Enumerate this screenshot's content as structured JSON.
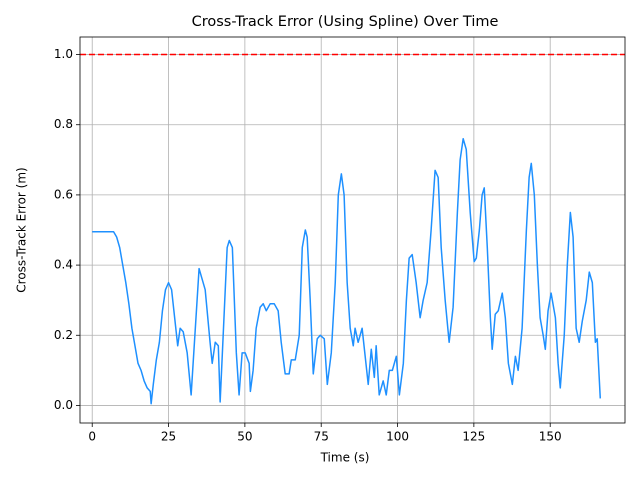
{
  "chart_data": {
    "type": "line",
    "title": "Cross-Track Error (Using Spline) Over Time",
    "xlabel": "Time (s)",
    "ylabel": "Cross-Track Error (m)",
    "xlim": [
      -4,
      174.5
    ],
    "ylim": [
      -0.05,
      1.05
    ],
    "xticks": [
      0,
      25,
      50,
      75,
      100,
      125,
      150
    ],
    "yticks": [
      {
        "value": 0,
        "label": "0.0"
      },
      0.2,
      0.4,
      0.6,
      0.8,
      {
        "value": 1,
        "label": "1.0"
      }
    ],
    "grid": true,
    "threshold": 1.0,
    "threshold_color": "#ff0000",
    "series": [
      {
        "color": "#1e90ff",
        "x": [
          0,
          7,
          8,
          9,
          10,
          11,
          12,
          13,
          14,
          15,
          16,
          17,
          18,
          19,
          19.3,
          20,
          21,
          22,
          23,
          24,
          25,
          26,
          27,
          28,
          28.8,
          29.8,
          31.1,
          32.4,
          35,
          37,
          38.6,
          39.3,
          40.3,
          41.3,
          41.9,
          44.2,
          44.9,
          45.9,
          47.2,
          48.1,
          49.1,
          50.1,
          51.4,
          51.8,
          52.7,
          53.7,
          55,
          56,
          57,
          58.3,
          59.6,
          60.9,
          61.9,
          63.2,
          64.5,
          65.2,
          66.5,
          67.8,
          68.8,
          69.8,
          70.4,
          71.4,
          72.4,
          73.7,
          74.7,
          76,
          77,
          78.3,
          79.6,
          80.6,
          81.6,
          82.5,
          83.5,
          84.5,
          85.5,
          86.1,
          87.1,
          88.4,
          89.4,
          90.4,
          91.4,
          92.4,
          93,
          94,
          95.3,
          96.3,
          97.3,
          98.3,
          99.6,
          100.6,
          101.9,
          102.9,
          103.8,
          104.8,
          106.1,
          107.4,
          108.4,
          109.7,
          111,
          112.3,
          113.3,
          114.3,
          115.6,
          116.9,
          118.2,
          119.6,
          120.5,
          121.5,
          122.5,
          123.8,
          125.1,
          125.8,
          126.8,
          127.7,
          128.4,
          129.4,
          130.4,
          131,
          132,
          133,
          134.3,
          135.3,
          136.3,
          137.6,
          138.6,
          139.5,
          140.8,
          142.2,
          143.1,
          143.8,
          144.8,
          145.8,
          146.7,
          147.7,
          148.4,
          149.3,
          150.3,
          151.7,
          152.6,
          153.3,
          154.6,
          155.6,
          156.6,
          157.5,
          158.5,
          159.5,
          160.5,
          161.8,
          162.8,
          163.8,
          164.8,
          165.4,
          166.4
        ],
        "values": [
          0.495,
          0.495,
          0.48,
          0.45,
          0.4,
          0.35,
          0.29,
          0.22,
          0.17,
          0.12,
          0.1,
          0.07,
          0.05,
          0.04,
          0.005,
          0.06,
          0.13,
          0.18,
          0.27,
          0.33,
          0.35,
          0.33,
          0.25,
          0.17,
          0.22,
          0.21,
          0.15,
          0.03,
          0.39,
          0.33,
          0.18,
          0.12,
          0.18,
          0.17,
          0.01,
          0.45,
          0.47,
          0.45,
          0.15,
          0.03,
          0.15,
          0.15,
          0.12,
          0.04,
          0.1,
          0.22,
          0.28,
          0.29,
          0.27,
          0.29,
          0.29,
          0.27,
          0.18,
          0.09,
          0.09,
          0.13,
          0.13,
          0.2,
          0.45,
          0.5,
          0.48,
          0.3,
          0.09,
          0.19,
          0.2,
          0.19,
          0.06,
          0.15,
          0.35,
          0.6,
          0.66,
          0.6,
          0.35,
          0.22,
          0.17,
          0.22,
          0.18,
          0.22,
          0.14,
          0.06,
          0.16,
          0.08,
          0.17,
          0.03,
          0.07,
          0.03,
          0.1,
          0.1,
          0.14,
          0.03,
          0.12,
          0.3,
          0.42,
          0.43,
          0.35,
          0.25,
          0.3,
          0.35,
          0.5,
          0.67,
          0.65,
          0.45,
          0.3,
          0.18,
          0.28,
          0.55,
          0.7,
          0.76,
          0.73,
          0.55,
          0.41,
          0.42,
          0.5,
          0.6,
          0.62,
          0.45,
          0.25,
          0.16,
          0.26,
          0.27,
          0.32,
          0.25,
          0.12,
          0.06,
          0.14,
          0.1,
          0.22,
          0.5,
          0.65,
          0.69,
          0.6,
          0.4,
          0.25,
          0.2,
          0.16,
          0.27,
          0.32,
          0.25,
          0.12,
          0.05,
          0.2,
          0.4,
          0.55,
          0.48,
          0.22,
          0.18,
          0.24,
          0.3,
          0.38,
          0.35,
          0.18,
          0.19,
          0.02
        ]
      }
    ]
  }
}
